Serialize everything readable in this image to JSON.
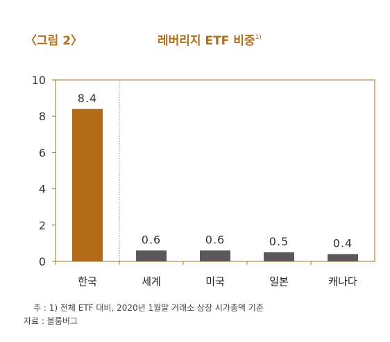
{
  "figure": {
    "label": "〈그림 2〉",
    "title": "레버리지 ETF 비중",
    "title_sup": "1)"
  },
  "colors": {
    "accent": "#b06e1c",
    "highlight_bar": "#b36b1a",
    "other_bar": "#595959",
    "axis": "#b06e1c"
  },
  "chart_data": {
    "type": "bar",
    "categories": [
      "한국",
      "세계",
      "미국",
      "일본",
      "캐나다"
    ],
    "values": [
      8.4,
      0.6,
      0.6,
      0.5,
      0.4
    ],
    "value_labels": [
      "8.4",
      "0.6",
      "0.6",
      "0.5",
      "0.4"
    ],
    "ylim": [
      0,
      10
    ],
    "yticks": [
      0,
      2,
      4,
      6,
      8,
      10
    ],
    "title": "레버리지 ETF 비중",
    "xlabel": "",
    "ylabel": "",
    "grid": false,
    "legend": "none"
  },
  "notes": {
    "note1": "주 : 1) 전체 ETF 대비, 2020년 1월말 거래소 상장 시가총액 기준",
    "note2": "자료 : 블룸버그"
  }
}
